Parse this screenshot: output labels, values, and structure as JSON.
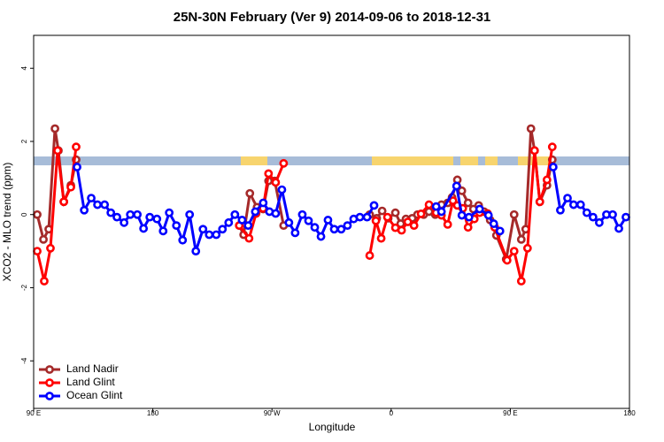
{
  "chart_data": {
    "type": "line",
    "title": "25N-30N February (Ver 9)   2014-09-06 to 2018-12-31",
    "x_label": "Longitude",
    "y_label": "XCO2 - MLO trend (ppm)",
    "xlim": [
      90,
      540
    ],
    "xticks": [
      {
        "value": 90,
        "label": "90 E"
      },
      {
        "value": 180,
        "label": "180"
      },
      {
        "value": 270,
        "label": "90 W"
      },
      {
        "value": 360,
        "label": "0"
      },
      {
        "value": 450,
        "label": "90 E"
      },
      {
        "value": 540,
        "label": "180"
      }
    ],
    "ylim": [
      -5.3,
      4.9
    ],
    "yticks": [
      -4,
      -2,
      0,
      2,
      4
    ],
    "legend": "bottom-left",
    "series": [
      {
        "name": "Land Nadir",
        "color": "#a52a2a",
        "x": [
          92.7,
          97.4,
          101.4,
          106.1,
          108.7,
          112.8,
          118.1,
          122.1,
          null,
          245.3,
          248.6,
          253.3,
          258.7,
          263.3,
          267.4,
          272.1,
          278.8,
          null,
          343.8,
          349.1,
          353.2,
          357.8,
          363.2,
          367.2,
          371.2,
          375.9,
          379.9,
          384.6,
          388.6,
          393.3,
          398,
          402.7,
          406,
          410,
          413.4,
          418.1,
          422.1,
          426.1,
          430.2,
          434.8,
          439.5,
          446.9,
          452.9,
          458.3,
          461.6,
          465.6,
          468.3,
          472.3,
          477.7,
          481.7
        ],
        "values": [
          0.0,
          -0.68,
          -0.4,
          2.35,
          1.75,
          0.35,
          0.8,
          1.5,
          null,
          -0.3,
          -0.55,
          0.58,
          0.2,
          0.15,
          0.92,
          0.92,
          -0.3,
          null,
          0.0,
          -0.1,
          0.1,
          -0.1,
          0.05,
          -0.25,
          -0.12,
          -0.1,
          0.0,
          0.0,
          0.08,
          0.0,
          0.27,
          0.32,
          0.47,
          0.95,
          0.65,
          0.32,
          0.15,
          0.25,
          0.08,
          -0.15,
          -0.57,
          -1.22,
          0.0,
          -0.68,
          -0.4,
          2.35,
          1.75,
          0.35,
          0.8,
          1.5
        ]
      },
      {
        "name": "Land Glint",
        "color": "#ff0000",
        "x": [
          92.7,
          98,
          102.7,
          108.1,
          112.8,
          118.1,
          122.1,
          null,
          245.3,
          252.7,
          258,
          263.3,
          267.4,
          272.8,
          278.8,
          null,
          343.8,
          348.5,
          352.5,
          357.2,
          363.2,
          367.9,
          372.6,
          377.3,
          382.6,
          388.6,
          394,
          398,
          402.7,
          406.7,
          410,
          414.1,
          418.1,
          422.8,
          426.8,
          432.8,
          438.2,
          447.6,
          452.9,
          458.3,
          463,
          468.3,
          472.3,
          477.7,
          481.7
        ],
        "values": [
          -1.0,
          -1.82,
          -0.92,
          1.75,
          0.35,
          0.75,
          1.85,
          null,
          -0.3,
          -0.65,
          0.03,
          0.17,
          1.12,
          0.88,
          1.4,
          null,
          -1.12,
          -0.17,
          -0.65,
          -0.07,
          -0.36,
          -0.43,
          -0.2,
          -0.3,
          0.02,
          0.27,
          0.05,
          -0.02,
          -0.27,
          0.38,
          0.25,
          0.17,
          -0.35,
          -0.12,
          0.05,
          0.03,
          -0.35,
          -1.25,
          -1.0,
          -1.82,
          -0.92,
          1.75,
          0.35,
          0.95,
          1.85
        ]
      },
      {
        "name": "Ocean Glint",
        "color": "#0000ff",
        "x": [
          122.8,
          128.2,
          133.5,
          138.2,
          143.6,
          148.3,
          152.9,
          158.3,
          163,
          168.3,
          173,
          177.7,
          183.1,
          187.8,
          192.4,
          197.8,
          202.5,
          207.8,
          212.5,
          217.9,
          222.6,
          227.9,
          232.6,
          237.3,
          242,
          247.4,
          252,
          257.4,
          263.4,
          268.1,
          272.8,
          277.5,
          282.8,
          287.5,
          292.9,
          297.6,
          302.3,
          307,
          312.3,
          317,
          322.3,
          327,
          331.7,
          336.4,
          341.8,
          347.1,
          null,
          394,
          398,
          409.4,
          413.4,
          418.8,
          426.8,
          433.5,
          437.5,
          442.2,
          null,
          482.4,
          487.8,
          493.2,
          497.8,
          503.1,
          507.8,
          512.5,
          517.2,
          522.6,
          527.3,
          532,
          537.3
        ],
        "values": [
          1.3,
          0.12,
          0.45,
          0.27,
          0.27,
          0.05,
          -0.07,
          -0.22,
          0.0,
          0.0,
          -0.38,
          -0.07,
          -0.12,
          -0.45,
          0.05,
          -0.3,
          -0.7,
          0.0,
          -1.0,
          -0.4,
          -0.55,
          -0.55,
          -0.4,
          -0.22,
          0.0,
          -0.15,
          -0.3,
          0.08,
          0.32,
          0.08,
          0.03,
          0.68,
          -0.22,
          -0.5,
          0.0,
          -0.17,
          -0.35,
          -0.6,
          -0.15,
          -0.4,
          -0.4,
          -0.3,
          -0.12,
          -0.07,
          -0.07,
          0.25,
          null,
          0.22,
          0.08,
          0.78,
          -0.02,
          -0.07,
          0.15,
          -0.02,
          -0.25,
          -0.45,
          null,
          1.3,
          0.12,
          0.45,
          0.27,
          0.27,
          0.05,
          -0.07,
          -0.22,
          0.0,
          0.0,
          -0.38,
          -0.07
        ]
      }
    ]
  }
}
